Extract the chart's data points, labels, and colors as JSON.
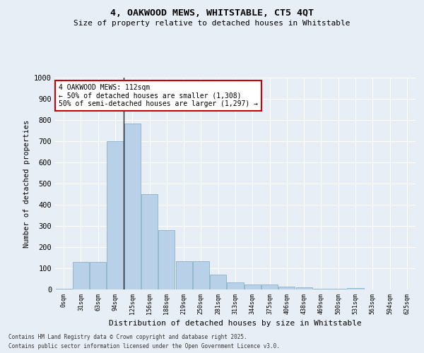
{
  "title1": "4, OAKWOOD MEWS, WHITSTABLE, CT5 4QT",
  "title2": "Size of property relative to detached houses in Whitstable",
  "xlabel": "Distribution of detached houses by size in Whitstable",
  "ylabel": "Number of detached properties",
  "categories": [
    "0sqm",
    "31sqm",
    "63sqm",
    "94sqm",
    "125sqm",
    "156sqm",
    "188sqm",
    "219sqm",
    "250sqm",
    "281sqm",
    "313sqm",
    "344sqm",
    "375sqm",
    "406sqm",
    "438sqm",
    "469sqm",
    "500sqm",
    "531sqm",
    "563sqm",
    "594sqm",
    "625sqm"
  ],
  "values": [
    5,
    130,
    130,
    700,
    785,
    450,
    280,
    135,
    135,
    70,
    35,
    25,
    25,
    12,
    10,
    5,
    5,
    8,
    0,
    0,
    0
  ],
  "bar_color": "#b8d0e8",
  "bar_edgecolor": "#7aaabf",
  "bg_color": "#e8eef5",
  "grid_color": "#ffffff",
  "vline_color": "#222222",
  "annotation_text": "4 OAKWOOD MEWS: 112sqm\n← 50% of detached houses are smaller (1,308)\n50% of semi-detached houses are larger (1,297) →",
  "annotation_box_color": "#ffffff",
  "annotation_border_color": "#cc0000",
  "ylim": [
    0,
    1000
  ],
  "yticks": [
    0,
    100,
    200,
    300,
    400,
    500,
    600,
    700,
    800,
    900,
    1000
  ],
  "footer1": "Contains HM Land Registry data © Crown copyright and database right 2025.",
  "footer2": "Contains public sector information licensed under the Open Government Licence v3.0."
}
